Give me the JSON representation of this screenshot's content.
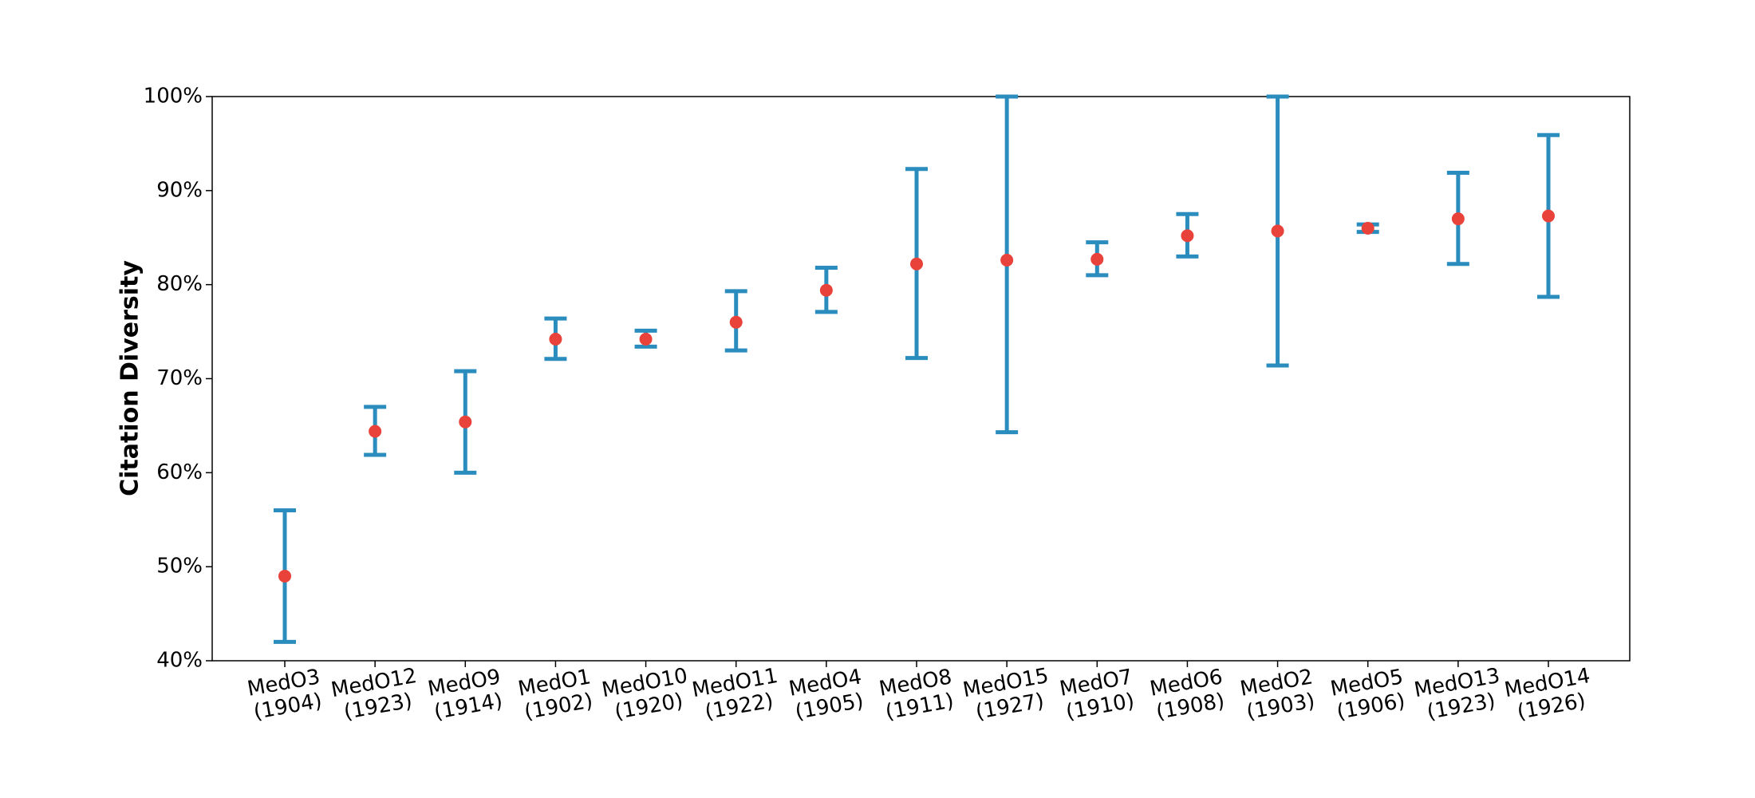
{
  "chart_data": {
    "type": "scatter",
    "title": "",
    "xlabel": "",
    "ylabel": "Citation Diversity",
    "y_unit": "%",
    "ylim": [
      40,
      100
    ],
    "y_ticks": [
      40,
      50,
      60,
      70,
      80,
      90,
      100
    ],
    "y_tick_labels": [
      "40%",
      "50%",
      "60%",
      "70%",
      "80%",
      "90%",
      "100%"
    ],
    "grid": false,
    "legend": "none",
    "x_tick_rotation": "tilted",
    "colors": {
      "error_bar": "#2b8cbe",
      "point": "#e8423a"
    },
    "categories": [
      [
        "MedO3",
        "(1904)"
      ],
      [
        "MedO12",
        "(1923)"
      ],
      [
        "MedO9",
        "(1914)"
      ],
      [
        "MedO1",
        "(1902)"
      ],
      [
        "MedO10",
        "(1920)"
      ],
      [
        "MedO11",
        "(1922)"
      ],
      [
        "MedO4",
        "(1905)"
      ],
      [
        "MedO8",
        "(1911)"
      ],
      [
        "MedO15",
        "(1927)"
      ],
      [
        "MedO7",
        "(1910)"
      ],
      [
        "MedO6",
        "(1908)"
      ],
      [
        "MedO2",
        "(1903)"
      ],
      [
        "MedO5",
        "(1906)"
      ],
      [
        "MedO13",
        "(1923)"
      ],
      [
        "MedO14",
        "(1926)"
      ]
    ],
    "values": [
      49.0,
      64.4,
      65.4,
      74.2,
      74.2,
      76.0,
      79.4,
      82.2,
      82.6,
      82.7,
      85.2,
      85.7,
      86.0,
      87.0,
      87.3
    ],
    "lower": [
      42.0,
      61.9,
      60.0,
      72.1,
      73.4,
      73.0,
      77.1,
      72.2,
      64.3,
      81.0,
      83.0,
      71.4,
      85.6,
      82.2,
      78.7
    ],
    "upper": [
      56.0,
      67.0,
      70.8,
      76.4,
      75.1,
      79.3,
      81.8,
      92.3,
      100.0,
      84.5,
      87.5,
      100.0,
      86.4,
      91.9,
      95.9
    ]
  }
}
